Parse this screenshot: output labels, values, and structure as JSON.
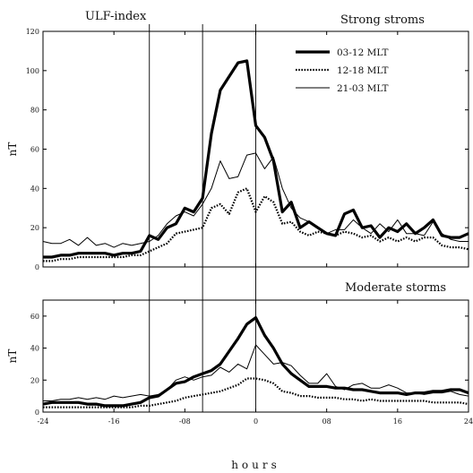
{
  "chart_data": {
    "type": "line",
    "figure_title": "ULF-index",
    "xlabel": "hours",
    "x_ticks": [
      "-24",
      "-16",
      "-08",
      "0",
      "08",
      "16",
      "24"
    ],
    "x_tick_values": [
      -24,
      -16,
      -8,
      0,
      8,
      16,
      24
    ],
    "vertical_markers": [
      -12,
      -6,
      0
    ],
    "legend_position": "top-right",
    "panels": [
      {
        "title": "Strong stroms",
        "ylabel": "nT",
        "ylim": [
          0,
          120
        ],
        "y_ticks": [
          0,
          20,
          40,
          60,
          80,
          100,
          120
        ],
        "x": [
          -24,
          -23,
          -22,
          -21,
          -20,
          -19,
          -18,
          -17,
          -16,
          -15,
          -14,
          -13,
          -12,
          -11,
          -10,
          -9,
          -8,
          -7,
          -6,
          -5,
          -4,
          -3,
          -2,
          -1,
          0,
          1,
          2,
          3,
          4,
          5,
          6,
          7,
          8,
          9,
          10,
          11,
          12,
          13,
          14,
          15,
          16,
          17,
          18,
          19,
          20,
          21,
          22,
          23,
          24
        ],
        "series": [
          {
            "name": "03-12 MLT",
            "style": "thick",
            "values": [
              5,
              5,
              6,
              6,
              7,
              7,
              7,
              7,
              6,
              7,
              7,
              8,
              16,
              14,
              20,
              22,
              30,
              28,
              35,
              68,
              90,
              97,
              104,
              105,
              72,
              66,
              54,
              28,
              33,
              20,
              23,
              20,
              17,
              16,
              27,
              29,
              20,
              21,
              15,
              20,
              18,
              22,
              17,
              20,
              24,
              16,
              15,
              15,
              17
            ]
          },
          {
            "name": "12-18 MLT",
            "style": "dotted",
            "values": [
              3,
              3,
              4,
              4,
              5,
              5,
              5,
              5,
              5,
              5,
              6,
              6,
              8,
              10,
              12,
              17,
              18,
              19,
              20,
              30,
              32,
              27,
              38,
              40,
              28,
              36,
              33,
              22,
              23,
              18,
              16,
              18,
              17,
              16,
              18,
              17,
              15,
              16,
              13,
              15,
              13,
              15,
              13,
              15,
              15,
              11,
              10,
              10,
              9
            ]
          },
          {
            "name": "21-03 MLT",
            "style": "thin",
            "values": [
              13,
              12,
              12,
              14,
              11,
              15,
              11,
              12,
              10,
              12,
              11,
              12,
              13,
              16,
              22,
              26,
              28,
              26,
              32,
              40,
              54,
              45,
              46,
              57,
              58,
              50,
              56,
              40,
              30,
              25,
              23,
              20,
              17,
              19,
              19,
              24,
              20,
              17,
              22,
              18,
              24,
              17,
              17,
              16,
              23,
              17,
              14,
              13,
              13
            ]
          }
        ]
      },
      {
        "title": "Moderate storms",
        "ylabel": "nT",
        "ylim": [
          0,
          70
        ],
        "y_ticks": [
          0,
          20,
          40,
          60
        ],
        "x": [
          -24,
          -23,
          -22,
          -21,
          -20,
          -19,
          -18,
          -17,
          -16,
          -15,
          -14,
          -13,
          -12,
          -11,
          -10,
          -9,
          -8,
          -7,
          -6,
          -5,
          -4,
          -3,
          -2,
          -1,
          0,
          1,
          2,
          3,
          4,
          5,
          6,
          7,
          8,
          9,
          10,
          11,
          12,
          13,
          14,
          15,
          16,
          17,
          18,
          19,
          20,
          21,
          22,
          23,
          24
        ],
        "series": [
          {
            "name": "03-12 MLT",
            "style": "thick",
            "values": [
              5,
              6,
              6,
              6,
              6,
              5,
              5,
              4,
              4,
              4,
              5,
              6,
              9,
              10,
              14,
              18,
              19,
              22,
              24,
              26,
              30,
              38,
              46,
              55,
              59,
              48,
              40,
              30,
              24,
              20,
              16,
              16,
              16,
              15,
              15,
              14,
              14,
              13,
              12,
              12,
              12,
              11,
              12,
              12,
              13,
              13,
              14,
              14,
              12
            ]
          },
          {
            "name": "12-18 MLT",
            "style": "dotted",
            "values": [
              3,
              3,
              3,
              3,
              3,
              3,
              3,
              3,
              3,
              3,
              3,
              4,
              4,
              5,
              6,
              7,
              9,
              10,
              11,
              12,
              13,
              15,
              17,
              21,
              21,
              20,
              18,
              13,
              12,
              10,
              10,
              9,
              9,
              9,
              8,
              8,
              7,
              8,
              7,
              7,
              7,
              7,
              7,
              7,
              6,
              6,
              6,
              6,
              5
            ]
          },
          {
            "name": "21-03 MLT",
            "style": "thin",
            "values": [
              7,
              7,
              8,
              8,
              9,
              8,
              9,
              8,
              10,
              9,
              10,
              11,
              10,
              11,
              14,
              20,
              22,
              20,
              22,
              23,
              28,
              25,
              30,
              27,
              42,
              36,
              30,
              31,
              29,
              23,
              18,
              18,
              24,
              16,
              14,
              17,
              18,
              15,
              15,
              17,
              15,
              12,
              12,
              11,
              12,
              12,
              13,
              11,
              10
            ]
          }
        ]
      }
    ]
  }
}
